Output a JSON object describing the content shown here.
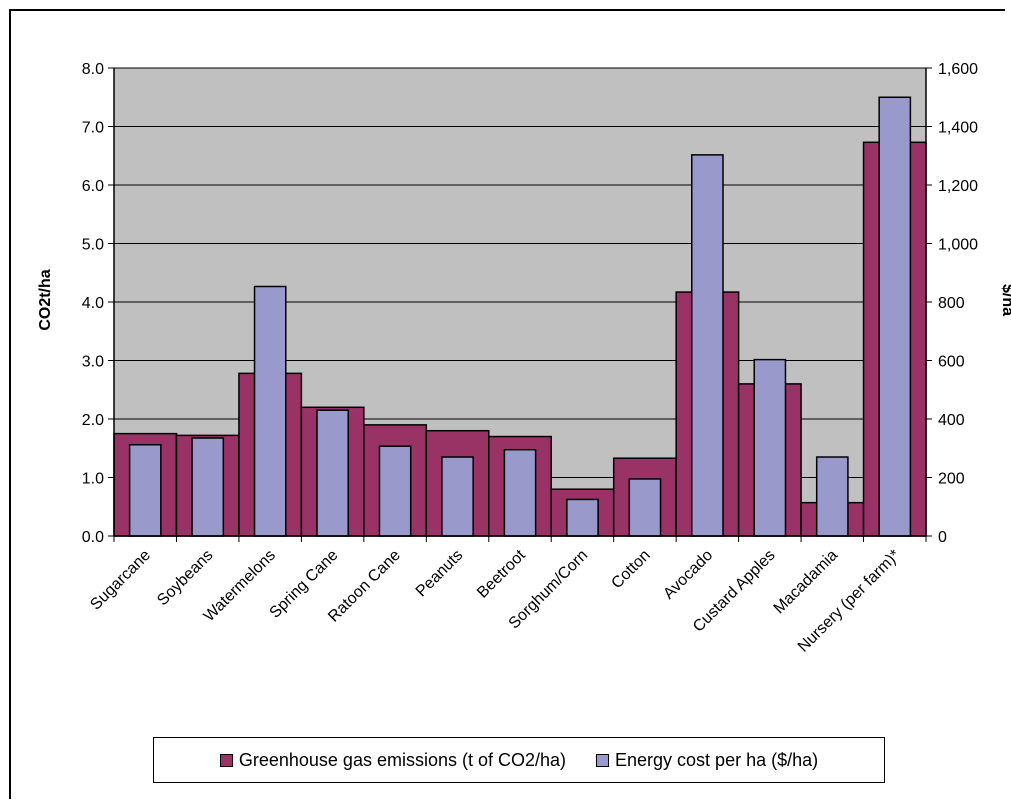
{
  "chart_data": {
    "type": "bar",
    "categories": [
      "Sugarcane",
      "Soybeans",
      "Watermelons",
      "Spring Cane",
      "Ratoon Cane",
      "Peanuts",
      "Beetroot",
      "Sorghum/Corn",
      "Cotton",
      "Avocado",
      "Custard Apples",
      "Macadamia",
      "Nursery (per farm)*"
    ],
    "series": [
      {
        "name": "Greenhouse gas emissions (t of CO2/ha)",
        "axis": "left",
        "color": "#993366",
        "values": [
          1.75,
          1.72,
          2.78,
          2.2,
          1.9,
          1.8,
          1.7,
          0.8,
          1.33,
          4.17,
          2.6,
          0.57,
          6.73
        ]
      },
      {
        "name": "Energy cost per ha ($/ha)",
        "axis": "right",
        "color": "#9999cc",
        "values": [
          312,
          335,
          853,
          430,
          307,
          270,
          295,
          125,
          195,
          1303,
          603,
          270,
          1500
        ]
      }
    ],
    "ylabel": "CO2t/ha",
    "y2label": "$/ha",
    "ylim": [
      0,
      8
    ],
    "y2lim": [
      0,
      1600
    ],
    "yticks": [
      "0.0",
      "1.0",
      "2.0",
      "3.0",
      "4.0",
      "5.0",
      "6.0",
      "7.0",
      "8.0"
    ],
    "y2ticks": [
      "0",
      "200",
      "400",
      "600",
      "800",
      "1,000",
      "1,200",
      "1,400",
      "1,600"
    ],
    "plot_background": "#c0c0c0",
    "grid": true,
    "legend_position": "bottom"
  }
}
